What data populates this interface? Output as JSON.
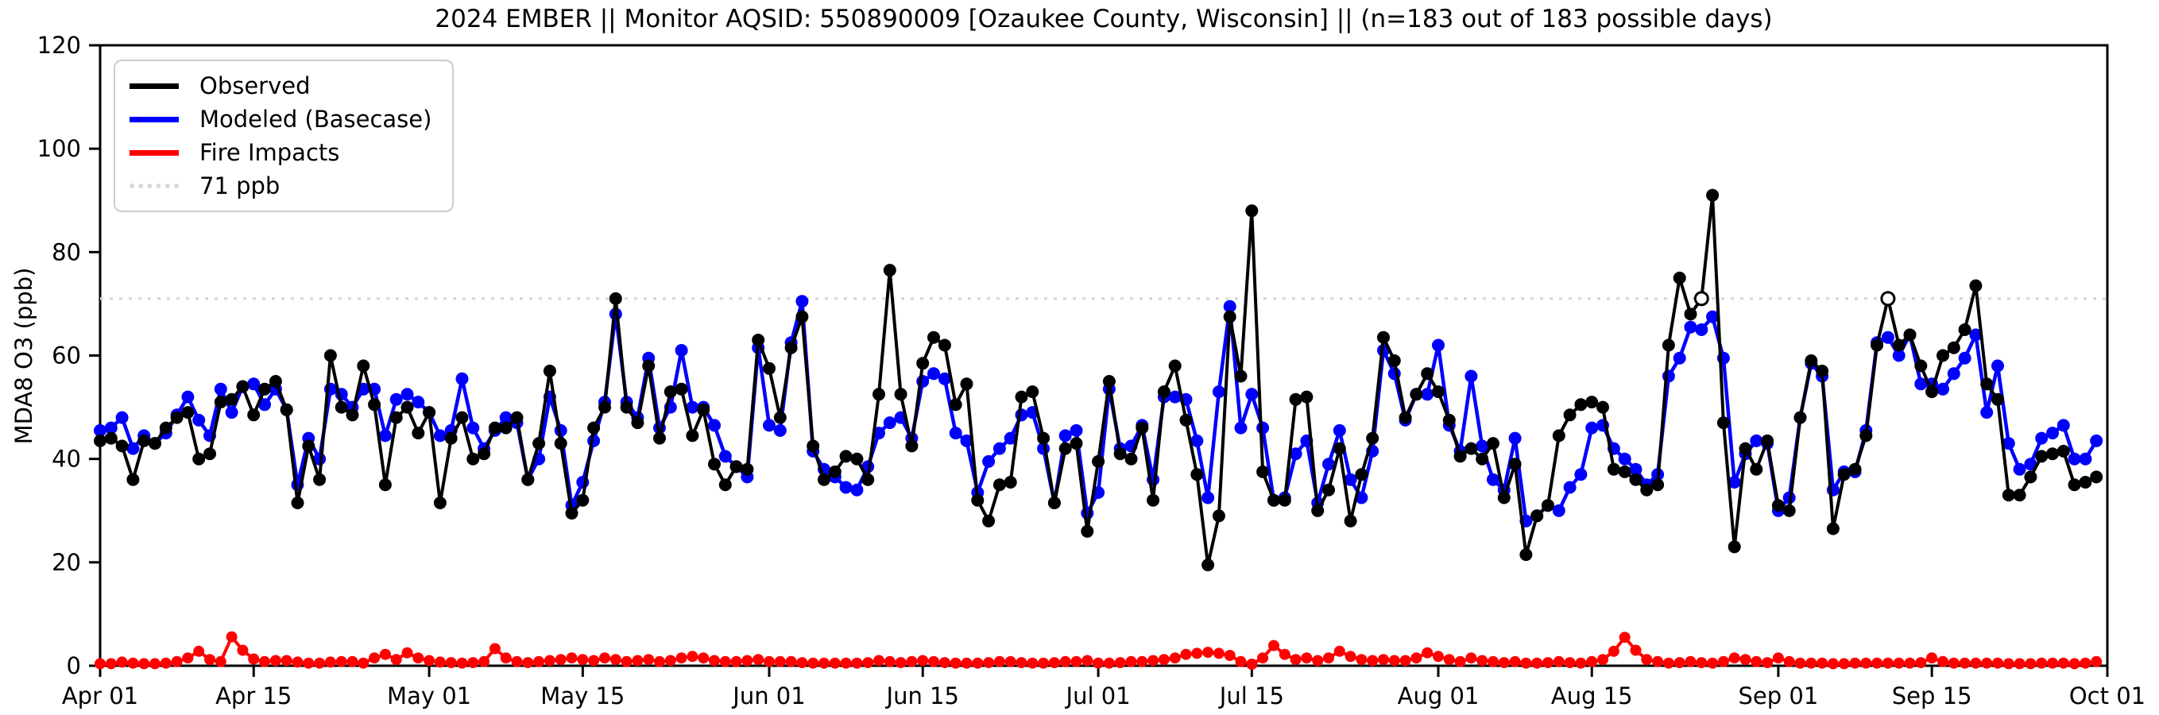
{
  "chart_data": {
    "type": "line",
    "title": "2024 EMBER || Monitor AQSID: 550890009 [Ozaukee County, Wisconsin] || (n=183 out of 183 possible days)",
    "ylabel": "MDA8 O3 (ppb)",
    "ylim": [
      0,
      120
    ],
    "yticks": [
      0,
      20,
      40,
      60,
      80,
      100,
      120
    ],
    "grid": false,
    "legend_position": "upper left",
    "n_days": 183,
    "x_ticks": [
      {
        "label": "Apr 01",
        "day": 1
      },
      {
        "label": "Apr 15",
        "day": 15
      },
      {
        "label": "May 01",
        "day": 31
      },
      {
        "label": "May 15",
        "day": 45
      },
      {
        "label": "Jun 01",
        "day": 62
      },
      {
        "label": "Jun 15",
        "day": 76
      },
      {
        "label": "Jul 01",
        "day": 92
      },
      {
        "label": "Jul 15",
        "day": 106
      },
      {
        "label": "Aug 01",
        "day": 123
      },
      {
        "label": "Aug 15",
        "day": 137
      },
      {
        "label": "Sep 01",
        "day": 154
      },
      {
        "label": "Sep 15",
        "day": 168
      },
      {
        "label": "Oct 01",
        "day": 184
      }
    ],
    "threshold": {
      "value": 71,
      "label": "71 ppb",
      "color": "#d9d9d9",
      "style": "dotted"
    },
    "open_circle_days": [
      147,
      164
    ],
    "series": [
      {
        "name": "Observed",
        "color": "#000000",
        "values": [
          43.5,
          44,
          42.5,
          36,
          43.5,
          43,
          46,
          48,
          49,
          40,
          41,
          51,
          51.5,
          54,
          48.5,
          53.5,
          55,
          49.5,
          31.5,
          42.5,
          36,
          60,
          50,
          48.5,
          58,
          50.5,
          35,
          48,
          50,
          45,
          49,
          31.5,
          44,
          48,
          40,
          41,
          46,
          46,
          48,
          36,
          43,
          57,
          43,
          29.5,
          32,
          46,
          50,
          71,
          50,
          47,
          58,
          44,
          53,
          53.5,
          44.5,
          49.5,
          39,
          35,
          38.5,
          38,
          63,
          57.5,
          48,
          61.5,
          67.5,
          42.5,
          36,
          37.5,
          40.5,
          40,
          36,
          52.5,
          76.5,
          52.5,
          42.5,
          58.5,
          63.5,
          62,
          50.5,
          54.5,
          32,
          28,
          35,
          35.5,
          52,
          53,
          44,
          31.5,
          42,
          43,
          26,
          39.5,
          55,
          41,
          40,
          46,
          32,
          53,
          58,
          47.5,
          37,
          19.5,
          29,
          67.5,
          56,
          88,
          37.5,
          32,
          32,
          51.5,
          52,
          30,
          34,
          42,
          28,
          37,
          44,
          63.5,
          59,
          48,
          52.5,
          56.5,
          53,
          47.5,
          40.5,
          42,
          40,
          43,
          32.5,
          39,
          21.5,
          29,
          31,
          44.5,
          48.5,
          50.5,
          51,
          50,
          38,
          37.5,
          36,
          34,
          35,
          62,
          75,
          68,
          71,
          91,
          47,
          23,
          42,
          38,
          43.5,
          31,
          30,
          48,
          59,
          57,
          26.5,
          37,
          38,
          44.5,
          62,
          71,
          62,
          64,
          58,
          53,
          60,
          61.5,
          65,
          73.5,
          54.5,
          51.5,
          33,
          33,
          36.5,
          40.5,
          41,
          41.5,
          35,
          35.5,
          36.5
        ]
      },
      {
        "name": "Modeled (Basecase)",
        "color": "#0000ff",
        "values": [
          45.5,
          46,
          48,
          42,
          44.5,
          43,
          45,
          48.5,
          52,
          47.5,
          44.5,
          53.5,
          49,
          54,
          54.5,
          50.5,
          53.5,
          49.5,
          35,
          44,
          40,
          53.5,
          52.5,
          50,
          53.5,
          53.5,
          44.5,
          51.5,
          52.5,
          51,
          49,
          44.5,
          45.5,
          55.5,
          46,
          42,
          45.5,
          48,
          47,
          36,
          40,
          52,
          45.5,
          31,
          35.5,
          43.5,
          51,
          68,
          51,
          48,
          59.5,
          46,
          50,
          61,
          50,
          50,
          46.5,
          40.5,
          38.5,
          36.5,
          61.5,
          46.5,
          45.5,
          62.5,
          70.5,
          41.5,
          38,
          36.5,
          34.5,
          34,
          38.5,
          45,
          47,
          48,
          44,
          55,
          56.5,
          55.5,
          45,
          43.5,
          33.5,
          39.5,
          42,
          44,
          48.5,
          49,
          42,
          31.5,
          44.5,
          45.5,
          29.5,
          33.5,
          53.5,
          42,
          42.5,
          46.5,
          36,
          52,
          52,
          51.5,
          43.5,
          32.5,
          53,
          69.5,
          46,
          52.5,
          46,
          32,
          32.5,
          41,
          43.5,
          31.5,
          39,
          45.5,
          36,
          32.5,
          41.5,
          61,
          56.5,
          47.5,
          52.5,
          52.5,
          62,
          46.5,
          41.5,
          56,
          42.5,
          36,
          34,
          44,
          28,
          29,
          31,
          30,
          34.5,
          37,
          46,
          46.5,
          42,
          40,
          38,
          35,
          37,
          56,
          59.5,
          65.5,
          65,
          67.5,
          59.5,
          35.5,
          41,
          43.5,
          43,
          30,
          32.5,
          48,
          58.5,
          56,
          34,
          37.5,
          37.5,
          45.5,
          62.5,
          63.5,
          60,
          64,
          54.5,
          54.5,
          53.5,
          56.5,
          59.5,
          64,
          49,
          58,
          43,
          38,
          39,
          44,
          45,
          46.5,
          40,
          40,
          43.5
        ]
      },
      {
        "name": "Fire Impacts",
        "color": "#ff0000",
        "values": [
          0.4,
          0.4,
          0.7,
          0.5,
          0.4,
          0.4,
          0.5,
          0.8,
          1.5,
          2.8,
          1.2,
          0.8,
          5.6,
          3,
          1.3,
          0.8,
          1,
          1,
          0.7,
          0.5,
          0.5,
          0.7,
          0.8,
          0.8,
          0.5,
          1.5,
          2.2,
          1.2,
          2.5,
          1.5,
          1,
          0.7,
          0.6,
          0.5,
          0.6,
          0.8,
          3.3,
          1.5,
          0.8,
          0.6,
          0.8,
          1,
          1.2,
          1.5,
          1.2,
          1,
          1.5,
          1.2,
          0.8,
          1,
          1.2,
          0.8,
          1,
          1.5,
          1.8,
          1.5,
          1,
          0.8,
          0.8,
          1,
          1.2,
          0.8,
          0.8,
          0.8,
          0.6,
          0.5,
          0.5,
          0.5,
          0.5,
          0.5,
          0.6,
          1,
          0.8,
          0.6,
          0.8,
          1,
          0.8,
          0.6,
          0.5,
          0.5,
          0.5,
          0.6,
          0.8,
          0.8,
          0.6,
          0.5,
          0.5,
          0.6,
          0.8,
          0.8,
          1,
          0.5,
          0.5,
          0.6,
          0.8,
          0.8,
          1,
          1.2,
          1.5,
          2.2,
          2.4,
          2.6,
          2.4,
          2,
          0.8,
          0.3,
          1.5,
          3.9,
          2.2,
          1.2,
          1.5,
          1,
          1.5,
          2.8,
          1.8,
          1.2,
          1,
          1.2,
          1,
          1,
          1.5,
          2.5,
          1.8,
          1.2,
          0.8,
          1.5,
          1,
          0.8,
          0.6,
          0.8,
          0.5,
          0.5,
          0.6,
          0.8,
          0.6,
          0.5,
          0.8,
          1.2,
          2.8,
          5.5,
          3,
          1.2,
          0.8,
          0.5,
          0.6,
          0.8,
          0.6,
          0.5,
          0.8,
          1.5,
          1.2,
          0.8,
          0.6,
          1.5,
          0.8,
          0.5,
          0.5,
          0.5,
          0.4,
          0.4,
          0.5,
          0.5,
          0.5,
          0.5,
          0.5,
          0.5,
          0.6,
          1.5,
          0.8,
          0.5,
          0.5,
          0.5,
          0.5,
          0.5,
          0.4,
          0.4,
          0.4,
          0.5,
          0.5,
          0.5,
          0.4,
          0.5,
          0.8
        ]
      }
    ]
  }
}
